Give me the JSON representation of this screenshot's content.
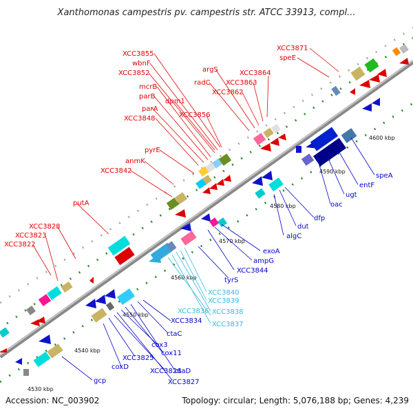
{
  "title": "Xanthomonas campestris pv. campestris str. ATCC 33913, compl...",
  "footer": {
    "accession": "Accession: NC_003902",
    "summary": "Topology: circular; Length: 5,076,188 bp; Genes: 4,239"
  },
  "colors": {
    "forward_label": "#e00000",
    "reverse_label": "#0000cc",
    "rna_label": "#33bbdd",
    "backbone": "#999999"
  },
  "ticks": [
    "4530 kbp",
    "4540 kbp",
    "4550 kbp",
    "4560 kbp",
    "4570 kbp",
    "4580 kbp",
    "4590 kbp",
    "4600 kbp"
  ],
  "labels_forward": [
    "XCC3822",
    "XCC3823",
    "XCC3828",
    "putA",
    "XCC3842",
    "anmK",
    "pyrE",
    "XCC3848",
    "parA",
    "parB",
    "mcrB",
    "XCC3852",
    "wbnF",
    "XCC3855",
    "dpm1",
    "XCC3856",
    "radC",
    "argS",
    "XCC3862",
    "XCC3863",
    "XCC3864",
    "XCC3871",
    "speE"
  ],
  "labels_reverse": [
    "gcp",
    "coxD",
    "XCC3825",
    "XCC3826",
    "XCC3827",
    "cox3",
    "cox11",
    "ctaD",
    "ctaC",
    "XCC3834",
    "tyrS",
    "XCC3844",
    "ampG",
    "exoA",
    "algC",
    "dut",
    "dfp",
    "oac",
    "ugt",
    "entF",
    "speA"
  ],
  "labels_rna": [
    "XCC3836",
    "XCC3837",
    "XCC3838",
    "XCC3839",
    "XCC3840"
  ]
}
